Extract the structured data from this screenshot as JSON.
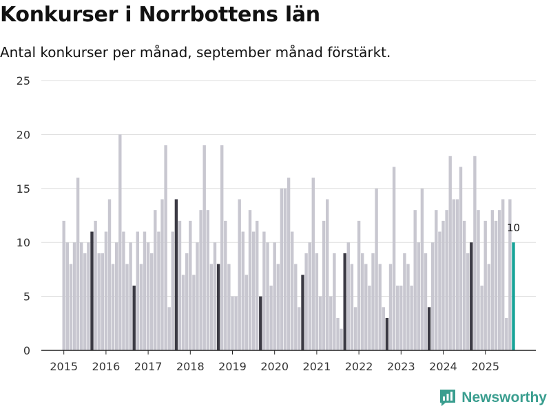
{
  "header": {
    "title": "Konkurser i Norrbottens län",
    "subtitle": "Antal konkurser per månad, september månad förstärkt."
  },
  "brand": {
    "name": "Newsworthy"
  },
  "colors": {
    "bar": "#c8c7d0",
    "highlight": "#3b3a44",
    "latest": "#17a398",
    "grid": "#dddddd",
    "axis": "#222222",
    "brand": "#3a9e8f"
  },
  "chart_data": {
    "type": "bar",
    "title": "Konkurser i Norrbottens län",
    "subtitle": "Antal konkurser per månad, september månad förstärkt.",
    "xlabel": "",
    "ylabel": "",
    "ylim": [
      0,
      25
    ],
    "yticks": [
      0,
      5,
      10,
      15,
      20,
      25
    ],
    "grid": true,
    "x_tick_labels": [
      "2015",
      "2016",
      "2017",
      "2018",
      "2019",
      "2020",
      "2021",
      "2022",
      "2023",
      "2024",
      "2025"
    ],
    "start": "2015-01",
    "end": "2025-09",
    "highlight_month": 9,
    "latest_label": "10",
    "values": [
      12,
      10,
      8,
      10,
      16,
      10,
      9,
      10,
      11,
      12,
      9,
      9,
      11,
      14,
      8,
      10,
      20,
      11,
      8,
      10,
      6,
      11,
      8,
      11,
      10,
      9,
      13,
      11,
      14,
      19,
      4,
      11,
      14,
      12,
      7,
      9,
      12,
      7,
      10,
      13,
      19,
      13,
      8,
      10,
      8,
      19,
      12,
      8,
      5,
      5,
      14,
      11,
      7,
      13,
      11,
      12,
      5,
      11,
      10,
      6,
      10,
      8,
      15,
      15,
      16,
      11,
      8,
      4,
      7,
      9,
      10,
      16,
      9,
      5,
      12,
      14,
      5,
      9,
      3,
      2,
      9,
      10,
      8,
      4,
      12,
      9,
      8,
      6,
      9,
      15,
      8,
      4,
      3,
      8,
      17,
      6,
      6,
      9,
      8,
      6,
      13,
      10,
      15,
      9,
      4,
      10,
      13,
      11,
      12,
      13,
      18,
      14,
      14,
      17,
      12,
      9,
      10,
      18,
      13,
      6,
      12,
      8,
      13,
      12,
      13,
      14,
      3,
      14,
      10
    ]
  }
}
